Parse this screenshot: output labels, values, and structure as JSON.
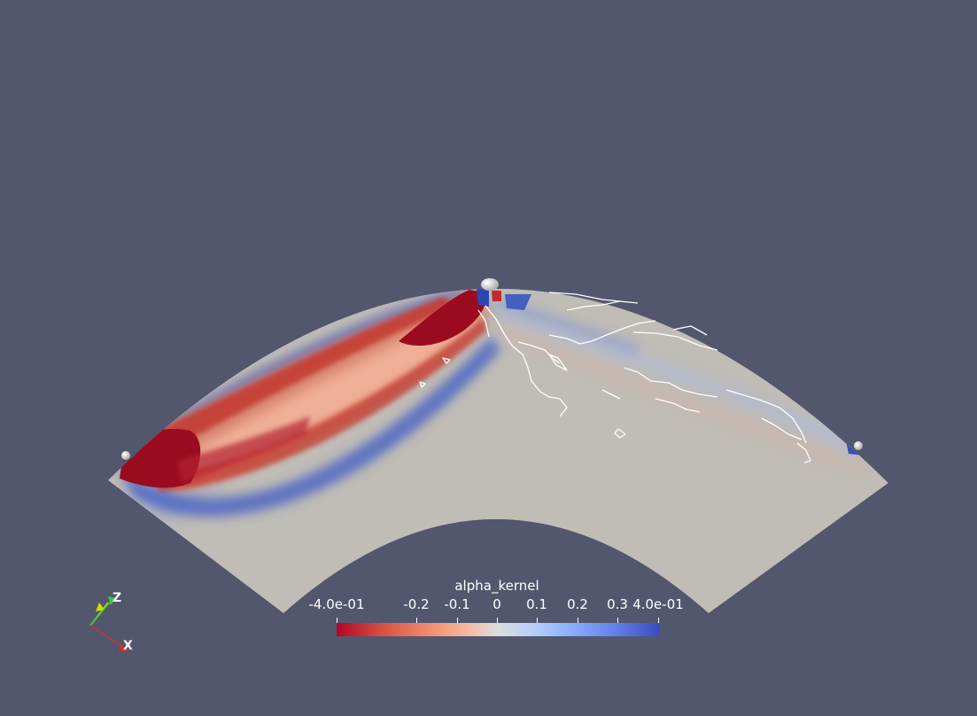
{
  "colorbar": {
    "title": "alpha_kernel",
    "ticks": [
      "-4.0e-01",
      "-0.2",
      "-0.1",
      "0",
      "0.1",
      "0.2",
      "0.3",
      "4.0e-01"
    ],
    "range": [
      -0.4,
      0.4
    ],
    "colormap": [
      "#b40426",
      "#dcdddd",
      "#3b4cc0"
    ]
  },
  "orientation_axes": {
    "z_label": "Z",
    "x_label": "X"
  },
  "colors": {
    "background": "#52576e",
    "neutral": "#c0bcb6",
    "negative": "#9a0a1e",
    "positive": "#3a55b8",
    "coastline": "#ffffff"
  }
}
